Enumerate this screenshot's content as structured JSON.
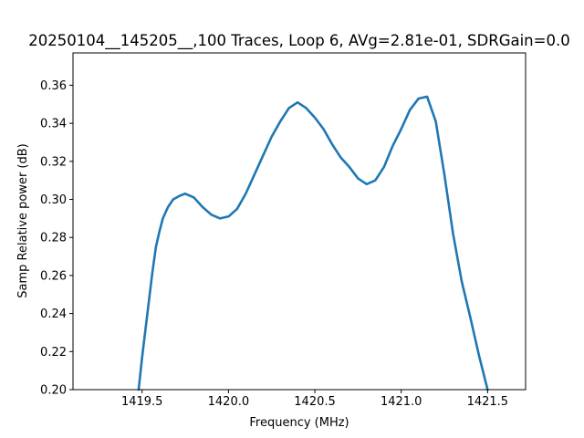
{
  "chart_data": {
    "type": "line",
    "title": "20250104__145205__,100 Traces, Loop 6, AVg=2.81e-01, SDRGain=0.0",
    "xlabel": "Frequency (MHz)",
    "ylabel": "Samp Relative power (dB)",
    "xlim": [
      1419.1,
      1421.72
    ],
    "ylim": [
      0.2,
      0.377
    ],
    "xticks": [
      1419.5,
      1420.0,
      1420.5,
      1421.0,
      1421.5
    ],
    "xtick_labels": [
      "1419.5",
      "1420.0",
      "1420.5",
      "1421.0",
      "1421.5"
    ],
    "yticks": [
      0.2,
      0.22,
      0.24,
      0.26,
      0.28,
      0.3,
      0.32,
      0.34,
      0.36
    ],
    "ytick_labels": [
      "0.20",
      "0.22",
      "0.24",
      "0.26",
      "0.28",
      "0.30",
      "0.32",
      "0.34",
      "0.36"
    ],
    "grid": false,
    "series": [
      {
        "color": "#1f77b4",
        "x": [
          1419.48,
          1419.5,
          1419.52,
          1419.54,
          1419.56,
          1419.58,
          1419.6,
          1419.62,
          1419.65,
          1419.68,
          1419.72,
          1419.75,
          1419.8,
          1419.85,
          1419.9,
          1419.95,
          1420.0,
          1420.05,
          1420.1,
          1420.15,
          1420.2,
          1420.25,
          1420.3,
          1420.35,
          1420.4,
          1420.45,
          1420.5,
          1420.55,
          1420.6,
          1420.65,
          1420.7,
          1420.75,
          1420.8,
          1420.85,
          1420.9,
          1420.95,
          1421.0,
          1421.05,
          1421.1,
          1421.15,
          1421.2,
          1421.25,
          1421.3,
          1421.35,
          1421.4,
          1421.45,
          1421.5
        ],
        "y": [
          0.2,
          0.217,
          0.232,
          0.247,
          0.262,
          0.275,
          0.283,
          0.29,
          0.296,
          0.3,
          0.302,
          0.303,
          0.301,
          0.296,
          0.292,
          0.29,
          0.291,
          0.295,
          0.303,
          0.313,
          0.323,
          0.333,
          0.341,
          0.348,
          0.351,
          0.348,
          0.343,
          0.337,
          0.329,
          0.322,
          0.317,
          0.311,
          0.308,
          0.31,
          0.317,
          0.328,
          0.337,
          0.347,
          0.353,
          0.354,
          0.341,
          0.313,
          0.282,
          0.257,
          0.238,
          0.218,
          0.2
        ]
      }
    ]
  }
}
